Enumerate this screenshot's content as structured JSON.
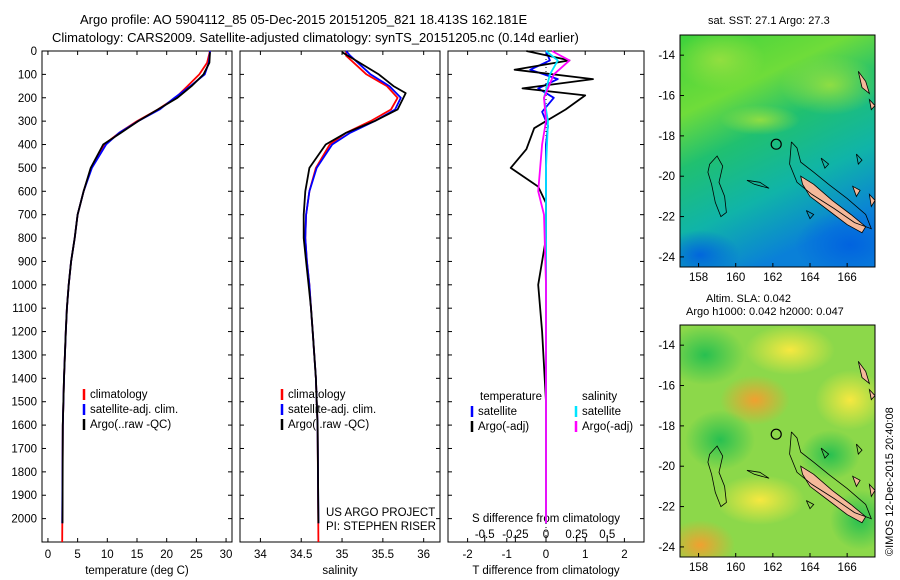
{
  "header": {
    "line1": "Argo profile: AO 5904112_85 05-Dec-2015 20151205_821 18.413S 162.181E",
    "line2": "Climatology: CARS2009. Satellite-adjusted climatology: synTS_20151205.nc (0.14d earlier)"
  },
  "depth_axis": {
    "ylim": [
      0,
      2100
    ],
    "ticks": [
      0,
      100,
      200,
      300,
      400,
      500,
      600,
      700,
      800,
      900,
      1000,
      1100,
      1200,
      1300,
      1400,
      1500,
      1600,
      1700,
      1800,
      1900,
      2000
    ],
    "labels": [
      "0",
      "100",
      "200",
      "300",
      "400",
      "500",
      "600",
      "700",
      "800",
      "900",
      "1000",
      "1100",
      "1200",
      "1300",
      "1400",
      "1500",
      "1600",
      "1700",
      "1800",
      "1900",
      "2000"
    ]
  },
  "colors": {
    "climatology": "#ff0000",
    "satellite": "#0000ff",
    "argo": "#000000",
    "t_sat": "#0000ff",
    "s_sat": "#00e5ff",
    "s_argo": "#ff00ff"
  },
  "chart_data": [
    {
      "type": "line",
      "xlabel": "temperature (deg C)",
      "xlim": [
        -1,
        31
      ],
      "xticks": [
        0,
        5,
        10,
        15,
        20,
        25,
        30
      ],
      "xtick_labels": [
        "0",
        "5",
        "10",
        "15",
        "20",
        "25",
        "30"
      ],
      "legend": [
        {
          "label": "climatology",
          "color": "#ff0000"
        },
        {
          "label": "satellite-adj. clim.",
          "color": "#0000ff"
        },
        {
          "label": "Argo(..raw -QC)",
          "color": "#000000"
        }
      ],
      "series": [
        {
          "name": "climatology",
          "color": "#ff0000",
          "x": [
            27.3,
            26.8,
            25.5,
            23.5,
            21.5,
            18.5,
            15,
            12,
            9.5,
            7.3,
            6,
            5,
            4.5,
            3.9,
            3.5,
            3.2,
            3,
            2.85,
            2.7,
            2.6,
            2.5,
            2.4
          ],
          "y": [
            0,
            50,
            100,
            150,
            200,
            250,
            300,
            350,
            400,
            500,
            600,
            700,
            800,
            900,
            1000,
            1100,
            1200,
            1300,
            1400,
            1500,
            1600,
            2100
          ]
        },
        {
          "name": "satellite-adj. clim.",
          "color": "#0000ff",
          "x": [
            27.3,
            27.1,
            26.4,
            24,
            21.3,
            18.8,
            15.2,
            12,
            9.8,
            7.4,
            6,
            5,
            4.5,
            3.9,
            3.5,
            3.2,
            3,
            2.85,
            2.7,
            2.6,
            2.5,
            2.4
          ],
          "y": [
            0,
            50,
            100,
            150,
            200,
            250,
            300,
            350,
            400,
            500,
            600,
            700,
            800,
            900,
            1000,
            1100,
            1200,
            1300,
            1400,
            1500,
            1600,
            2020
          ]
        },
        {
          "name": "Argo(..raw -QC)",
          "color": "#000000",
          "x": [
            27.3,
            27.2,
            26.2,
            24.2,
            21.8,
            18.5,
            15.2,
            12.3,
            9.3,
            7.2,
            6,
            5,
            4.5,
            3.9,
            3.5,
            3.2,
            3,
            2.85,
            2.7,
            2.6,
            2.5,
            2.45
          ],
          "y": [
            5,
            50,
            100,
            150,
            200,
            250,
            300,
            350,
            400,
            500,
            600,
            700,
            800,
            900,
            1000,
            1100,
            1200,
            1300,
            1400,
            1500,
            1600,
            2020
          ]
        }
      ]
    },
    {
      "type": "line",
      "xlabel": "salinity",
      "xlim": [
        33.75,
        36.2
      ],
      "xticks": [
        34,
        34.5,
        35,
        35.5,
        36
      ],
      "xtick_labels": [
        "34",
        "34.5",
        "35",
        "35.5",
        "36"
      ],
      "legend": [
        {
          "label": "climatology",
          "color": "#ff0000"
        },
        {
          "label": "satellite-adj. clim.",
          "color": "#0000ff"
        },
        {
          "label": "Argo(..raw -QC)",
          "color": "#000000"
        }
      ],
      "annotation": [
        "US ARGO PROJECT",
        "PI: STEPHEN RISER"
      ],
      "series": [
        {
          "name": "climatology",
          "color": "#ff0000",
          "x": [
            35.05,
            35.05,
            35.3,
            35.55,
            35.68,
            35.6,
            35.35,
            35.05,
            34.85,
            34.68,
            34.6,
            34.56,
            34.55,
            34.57,
            34.6,
            34.62,
            34.64,
            34.66,
            34.68,
            34.69,
            34.7,
            34.71
          ],
          "y": [
            0,
            20,
            100,
            150,
            200,
            250,
            300,
            350,
            400,
            500,
            600,
            700,
            800,
            900,
            1000,
            1100,
            1200,
            1300,
            1400,
            1500,
            1600,
            2100
          ]
        },
        {
          "name": "satellite-adj. clim.",
          "color": "#0000ff",
          "x": [
            35.05,
            35.1,
            35.35,
            35.58,
            35.72,
            35.65,
            35.4,
            35.1,
            34.88,
            34.69,
            34.6,
            34.56,
            34.55,
            34.57,
            34.6,
            34.62,
            34.64,
            34.66,
            34.68,
            34.69,
            34.7,
            34.71
          ],
          "y": [
            0,
            20,
            100,
            150,
            200,
            250,
            300,
            350,
            400,
            500,
            600,
            700,
            800,
            900,
            1000,
            1100,
            1200,
            1300,
            1400,
            1500,
            1600,
            2020
          ]
        },
        {
          "name": "Argo(..raw -QC)",
          "color": "#000000",
          "x": [
            35.0,
            35.12,
            35.45,
            35.63,
            35.78,
            35.68,
            35.4,
            35.05,
            34.8,
            34.6,
            34.55,
            34.53,
            34.53,
            34.56,
            34.59,
            34.62,
            34.64,
            34.66,
            34.68,
            34.69,
            34.7,
            34.71
          ],
          "y": [
            5,
            30,
            100,
            150,
            180,
            250,
            300,
            350,
            400,
            500,
            600,
            700,
            800,
            900,
            1000,
            1100,
            1200,
            1300,
            1400,
            1500,
            1600,
            2020
          ]
        }
      ]
    },
    {
      "type": "line",
      "xlabel": "T difference from climatology",
      "xlabel_top": "S difference from climatology",
      "xlim": [
        -2.5,
        2.5
      ],
      "xticks": [
        -2,
        -1,
        0,
        1,
        2
      ],
      "xtick_labels": [
        "-2",
        "-1",
        "0",
        "1",
        "2"
      ],
      "sticks": [
        -0.5,
        -0.25,
        0,
        0.25,
        0.5
      ],
      "stick_labels": [
        "-0.5",
        "-0.25",
        "0",
        "0.25",
        "0.5"
      ],
      "legend": [
        {
          "group": "temperature",
          "label": "satellite",
          "color": "#0000ff"
        },
        {
          "group": "temperature",
          "label": "Argo(-adj)",
          "color": "#000000"
        },
        {
          "group": "salinity",
          "label": "satellite",
          "color": "#00e5ff"
        },
        {
          "group": "salinity",
          "label": "Argo(-adj)",
          "color": "#ff00ff"
        }
      ],
      "legend_titles": [
        "temperature",
        "salinity"
      ],
      "series": [
        {
          "name": "T satellite",
          "color": "#0000ff",
          "x": [
            0,
            0.1,
            -0.4,
            0.3,
            -0.2,
            0.2,
            -0.1,
            0.05,
            0,
            0,
            0,
            0,
            0,
            0
          ],
          "y": [
            0,
            40,
            80,
            120,
            160,
            200,
            260,
            320,
            400,
            500,
            700,
            1000,
            1500,
            2020
          ]
        },
        {
          "name": "T Argo(-adj)",
          "color": "#000000",
          "x": [
            -0.5,
            0.6,
            -0.8,
            1.2,
            -0.6,
            1.0,
            0.5,
            -0.3,
            -0.5,
            -0.9,
            -0.2,
            0,
            0,
            0,
            -0.2,
            -0.1,
            0,
            0
          ],
          "y": [
            0,
            40,
            80,
            120,
            160,
            190,
            250,
            330,
            420,
            500,
            580,
            650,
            700,
            800,
            1000,
            1200,
            1500,
            2020
          ]
        },
        {
          "name": "S satellite",
          "color": "#00e5ff",
          "x": [
            0,
            0.3,
            0.1,
            -0.05,
            0.05,
            0,
            0,
            0,
            0
          ],
          "y": [
            0,
            40,
            100,
            200,
            300,
            500,
            700,
            1200,
            2020
          ]
        },
        {
          "name": "S Argo(-adj)",
          "color": "#ff00ff",
          "x": [
            0.15,
            0.6,
            0.2,
            -0.05,
            0,
            -0.1,
            -0.2,
            -0.05,
            0,
            0
          ],
          "y": [
            0,
            40,
            100,
            200,
            300,
            400,
            600,
            700,
            1000,
            2020
          ]
        }
      ]
    },
    {
      "type": "heatmap",
      "title": "sat. SST: 27.1 Argo: 27.3",
      "xlim": [
        157,
        167.5
      ],
      "ylim": [
        -24.5,
        -13
      ],
      "xticks": [
        158,
        160,
        162,
        164,
        166
      ],
      "xtick_labels": [
        "158",
        "160",
        "162",
        "164",
        "166"
      ],
      "yticks": [
        -14,
        -16,
        -18,
        -20,
        -22,
        -24
      ],
      "ytick_labels": [
        "-14",
        "-16",
        "-18",
        "-20",
        "-22",
        "-24"
      ],
      "marker": {
        "lon": 162.181,
        "lat": -18.413
      }
    },
    {
      "type": "heatmap",
      "title": "Altim. SLA: 0.042",
      "subtitle": "Argo h1000: 0.042 h2000: 0.047",
      "xlim": [
        157,
        167.5
      ],
      "ylim": [
        -24.5,
        -13
      ],
      "xticks": [
        158,
        160,
        162,
        164,
        166
      ],
      "xtick_labels": [
        "158",
        "160",
        "162",
        "164",
        "166"
      ],
      "yticks": [
        -14,
        -16,
        -18,
        -20,
        -22,
        -24
      ],
      "ytick_labels": [
        "-14",
        "-16",
        "-18",
        "-20",
        "-22",
        "-24"
      ],
      "marker": {
        "lon": 162.181,
        "lat": -18.413
      }
    }
  ],
  "footer": {
    "credit": "©IMOS 12-Dec-2015 20:40:08"
  }
}
